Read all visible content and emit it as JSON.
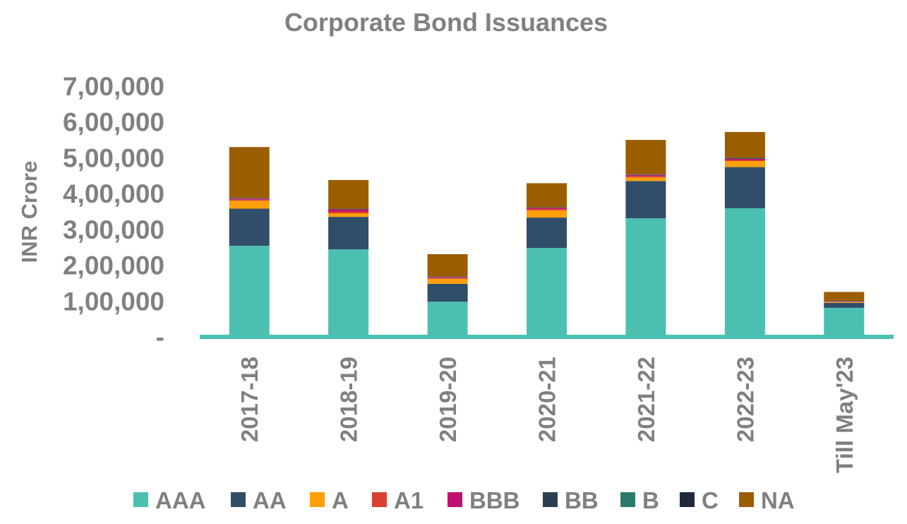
{
  "chart_data": {
    "type": "bar",
    "stacked": true,
    "title": "Corporate Bond Issuances",
    "ylabel": "INR Crore",
    "xlabel": "",
    "ylim": [
      0,
      700000
    ],
    "yticks": [
      {
        "value": 0,
        "label": "-"
      },
      {
        "value": 100000,
        "label": "1,00,000"
      },
      {
        "value": 200000,
        "label": "2,00,000"
      },
      {
        "value": 300000,
        "label": "3,00,000"
      },
      {
        "value": 400000,
        "label": "4,00,000"
      },
      {
        "value": 500000,
        "label": "5,00,000"
      },
      {
        "value": 600000,
        "label": "6,00,000"
      },
      {
        "value": 700000,
        "label": "7,00,000"
      }
    ],
    "grid": false,
    "legend_position": "bottom",
    "categories": [
      "2017-18",
      "2018-19",
      "2019-20",
      "2020-21",
      "2021-22",
      "2022-23",
      "Till May'23"
    ],
    "series": [
      {
        "name": "AAA",
        "color": "#4bc0b1",
        "values": [
          254000,
          244000,
          98000,
          248000,
          331000,
          359000,
          81000
        ]
      },
      {
        "name": "AA",
        "color": "#304d6a",
        "values": [
          104000,
          91000,
          50000,
          85000,
          104000,
          115000,
          14000
        ]
      },
      {
        "name": "A",
        "color": "#ff9f0a",
        "values": [
          22000,
          10000,
          14000,
          20000,
          10000,
          17000,
          2000
        ]
      },
      {
        "name": "A1",
        "color": "#d84132",
        "values": [
          3000,
          5000,
          3000,
          4000,
          4000,
          3000,
          1000
        ]
      },
      {
        "name": "BBB",
        "color": "#c0116e",
        "values": [
          3000,
          6000,
          2000,
          3000,
          3000,
          3000,
          1000
        ]
      },
      {
        "name": "BB",
        "color": "#2e3e52",
        "values": [
          1000,
          1000,
          1000,
          1000,
          1000,
          2000,
          500
        ]
      },
      {
        "name": "B",
        "color": "#2a7a6a",
        "values": [
          500,
          500,
          500,
          500,
          500,
          500,
          500
        ]
      },
      {
        "name": "C",
        "color": "#1e2a38",
        "values": [
          500,
          500,
          500,
          500,
          500,
          500,
          500
        ]
      },
      {
        "name": "NA",
        "color": "#9a5d00",
        "values": [
          142000,
          80000,
          62000,
          67000,
          96000,
          72000,
          25000
        ]
      }
    ]
  }
}
